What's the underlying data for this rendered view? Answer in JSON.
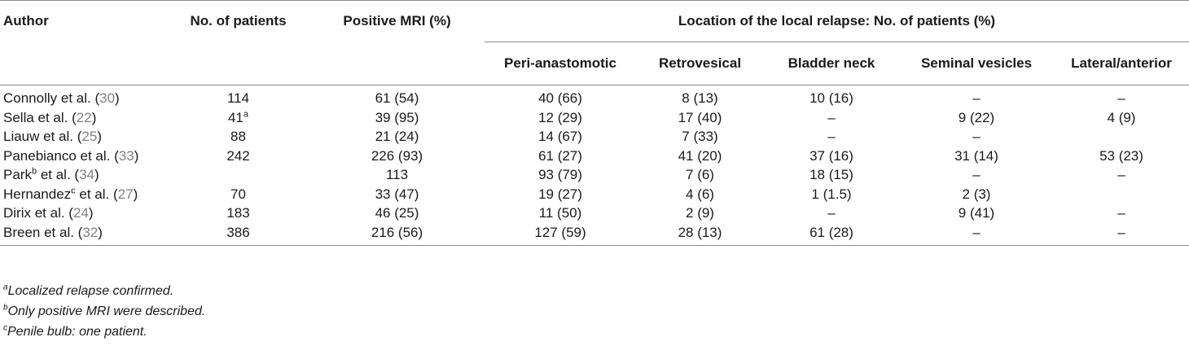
{
  "header": {
    "author": "Author",
    "patients": "No. of patients",
    "positive_mri": "Positive MRI (%)",
    "location_group": "Location of the local relapse: No. of patients (%)",
    "sub": [
      "Peri-anastomotic",
      "Retrovesical",
      "Bladder neck",
      "Seminal vesicles",
      "Lateral/anterior"
    ]
  },
  "rows": [
    {
      "name": "Connolly",
      "sup": "",
      "etal": " et al. (",
      "ref": "30",
      "close": ")",
      "patients": "114",
      "patients_sup": "",
      "mri": "61 (54)",
      "peri": "40 (66)",
      "retro": "8 (13)",
      "bladder": "10 (16)",
      "seminal": "–",
      "lateral": "–"
    },
    {
      "name": "Sella",
      "sup": "",
      "etal": " et al. (",
      "ref": "22",
      "close": ")",
      "patients": "41",
      "patients_sup": "a",
      "mri": "39 (95)",
      "peri": "12 (29)",
      "retro": "17 (40)",
      "bladder": "–",
      "seminal": "9 (22)",
      "lateral": "4 (9)"
    },
    {
      "name": "Liauw",
      "sup": "",
      "etal": " et al. (",
      "ref": "25",
      "close": ")",
      "patients": "88",
      "patients_sup": "",
      "mri": "21 (24)",
      "peri": "14 (67)",
      "retro": "7 (33)",
      "bladder": "–",
      "seminal": "–",
      "lateral": ""
    },
    {
      "name": "Panebianco",
      "sup": "",
      "etal": " et al. (",
      "ref": "33",
      "close": ")",
      "patients": "242",
      "patients_sup": "",
      "mri": "226 (93)",
      "peri": "61 (27)",
      "retro": "41 (20)",
      "bladder": "37 (16)",
      "seminal": "31 (14)",
      "lateral": "53 (23)"
    },
    {
      "name": "Park",
      "sup": "b",
      "etal": " et al. (",
      "ref": "34",
      "close": ")",
      "patients": "",
      "patients_sup": "",
      "mri": "113",
      "peri": "93 (79)",
      "retro": "7 (6)",
      "bladder": "18 (15)",
      "seminal": "–",
      "lateral": "–"
    },
    {
      "name": "Hernandez",
      "sup": "c",
      "etal": " et al. (",
      "ref": "27",
      "close": ")",
      "patients": "70",
      "patients_sup": "",
      "mri": "33 (47)",
      "peri": "19 (27)",
      "retro": "4 (6)",
      "bladder": "1 (1.5)",
      "seminal": "2 (3)",
      "lateral": ""
    },
    {
      "name": "Dirix",
      "sup": "",
      "etal": " et al. (",
      "ref": "24",
      "close": ")",
      "patients": "183",
      "patients_sup": "",
      "mri": "46 (25)",
      "peri": "11 (50)",
      "retro": "2 (9)",
      "bladder": "–",
      "seminal": "9 (41)",
      "lateral": "–"
    },
    {
      "name": "Breen",
      "sup": "",
      "etal": " et al. (",
      "ref": "32",
      "close": ")",
      "patients": "386",
      "patients_sup": "",
      "mri": "216 (56)",
      "peri": "127 (59)",
      "retro": "28 (13)",
      "bladder": "61 (28)",
      "seminal": "–",
      "lateral": "–"
    }
  ],
  "notes": [
    {
      "mark": "a",
      "text": "Localized relapse confirmed."
    },
    {
      "mark": "b",
      "text": "Only positive MRI were described."
    },
    {
      "mark": "c",
      "text": "Penile bulb: one patient."
    }
  ]
}
